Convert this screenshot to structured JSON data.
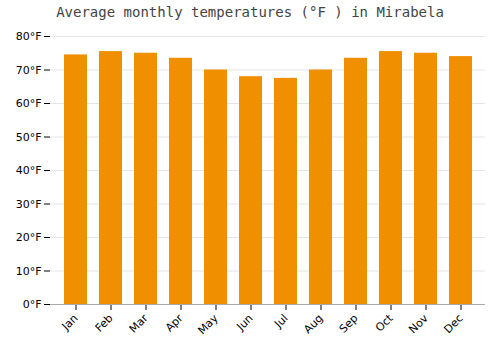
{
  "chart_data": {
    "type": "bar",
    "title": "Average monthly temperatures (°F ) in Mirabela",
    "categories": [
      "Jan",
      "Feb",
      "Mar",
      "Apr",
      "May",
      "Jun",
      "Jul",
      "Aug",
      "Sep",
      "Oct",
      "Nov",
      "Dec"
    ],
    "values": [
      74.5,
      75.5,
      75.0,
      73.5,
      70.0,
      68.0,
      67.5,
      70.0,
      73.5,
      75.5,
      75.0,
      74.0
    ],
    "color": "#F09000",
    "ylim": [
      0,
      80
    ],
    "yticks": [
      {
        "value": 0,
        "label": "0°F"
      },
      {
        "value": 10,
        "label": "10°F"
      },
      {
        "value": 20,
        "label": "20°F"
      },
      {
        "value": 30,
        "label": "30°F"
      },
      {
        "value": 40,
        "label": "40°F"
      },
      {
        "value": 50,
        "label": "50°F"
      },
      {
        "value": 60,
        "label": "60°F"
      },
      {
        "value": 70,
        "label": "70°F"
      },
      {
        "value": 80,
        "label": "80°F"
      }
    ],
    "grid": true
  }
}
